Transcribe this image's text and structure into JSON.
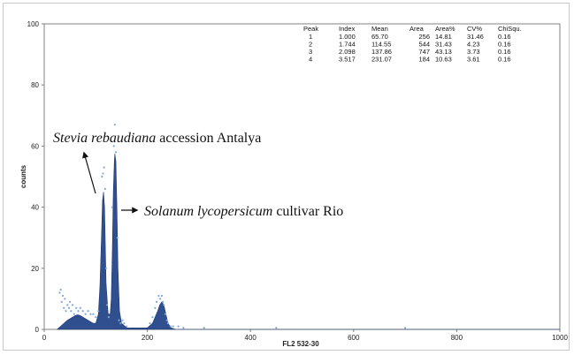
{
  "chart_data": {
    "type": "area",
    "xlabel": "FL2  532-30",
    "ylabel": "counts",
    "xlim": [
      0,
      1000
    ],
    "ylim": [
      0,
      100
    ],
    "x_ticks": [
      "0",
      "200",
      "400",
      "600",
      "800",
      "1000"
    ],
    "y_ticks": [
      "0",
      "20",
      "40",
      "60",
      "80",
      "100"
    ],
    "x_tick_values": [
      0,
      200,
      400,
      600,
      800,
      1000
    ],
    "y_tick_values": [
      0,
      20,
      40,
      60,
      80,
      100
    ],
    "fill_color": "#2f4f8f",
    "scatter_color": "#7fa8d8",
    "histogram": {
      "x": [
        25,
        35,
        45,
        55,
        60,
        65,
        70,
        75,
        80,
        85,
        90,
        95,
        100,
        105,
        108,
        111,
        113,
        115,
        117,
        120,
        124,
        128,
        130,
        132,
        134,
        136,
        137,
        139,
        141,
        143,
        146,
        150,
        160,
        200,
        210,
        215,
        220,
        224,
        228,
        232,
        236,
        240,
        246,
        255,
        300,
        1000
      ],
      "y": [
        0,
        1.5,
        3,
        4,
        4.5,
        4.8,
        4.5,
        4,
        3.5,
        3,
        2.5,
        2,
        2,
        5,
        14,
        30,
        42,
        45,
        40,
        15,
        5,
        5,
        10,
        25,
        45,
        55,
        57.5,
        55,
        40,
        20,
        6,
        2,
        0.5,
        0.5,
        2,
        4,
        6,
        8,
        9,
        8,
        5,
        2,
        0.5,
        0,
        0,
        0
      ]
    },
    "scatter_points": {
      "x": [
        30,
        32,
        34,
        36,
        38,
        40,
        42,
        45,
        48,
        50,
        52,
        55,
        58,
        62,
        66,
        70,
        75,
        80,
        85,
        90,
        95,
        100,
        105,
        112,
        114,
        116,
        118,
        120,
        122,
        125,
        132,
        135,
        137,
        139,
        142,
        145,
        148,
        152,
        155,
        160,
        205,
        210,
        215,
        218,
        222,
        225,
        228,
        230,
        232,
        235,
        238,
        240,
        245,
        250,
        260,
        270,
        310,
        450,
        700
      ],
      "y": [
        12,
        13,
        9,
        11,
        7,
        10,
        6,
        8,
        7,
        9,
        6,
        8,
        5,
        7,
        6,
        7,
        6,
        5,
        6,
        5,
        5,
        4,
        6,
        50,
        51,
        53,
        46,
        20,
        8,
        4,
        40,
        60,
        67,
        58,
        30,
        3,
        2,
        3,
        2,
        1,
        2,
        4,
        7,
        9,
        11,
        10,
        11,
        9,
        8,
        5,
        3,
        2,
        1,
        1,
        1,
        0.5,
        0.5,
        0.5,
        0.5
      ]
    },
    "peak_table": {
      "headers": [
        "Peak",
        "Index",
        "Mean",
        "Area",
        "Area%",
        "CV%",
        "ChiSqu."
      ],
      "rows": [
        [
          "1",
          "1.000",
          "65.70",
          "256",
          "14.81",
          "31.46",
          "0.16"
        ],
        [
          "2",
          "1.744",
          "114.55",
          "544",
          "31.43",
          "4.23",
          "0.16"
        ],
        [
          "3",
          "2.098",
          "137.86",
          "747",
          "43.13",
          "3.73",
          "0.16"
        ],
        [
          "4",
          "3.517",
          "231.07",
          "184",
          "10.63",
          "3.61",
          "0.16"
        ]
      ]
    },
    "annotations": [
      {
        "italic": "Stevia rebaudiana",
        "roman": " accession Antalya"
      },
      {
        "italic": "Solanum lycopersicum",
        "roman": " cultivar Rio"
      }
    ]
  }
}
